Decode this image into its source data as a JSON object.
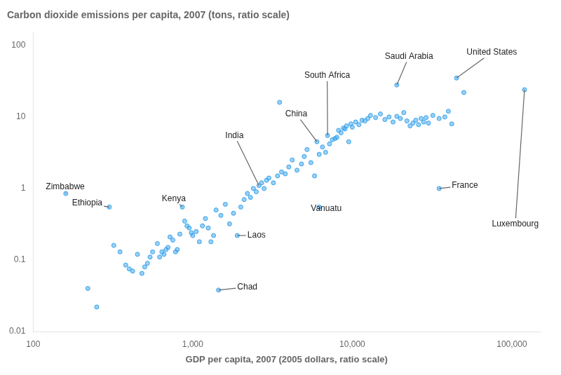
{
  "chart_data": {
    "type": "scatter",
    "title": "Carbon dioxide emissions per capita, 2007 (tons, ratio scale)",
    "x_label": "GDP per capita, 2007 (2005 dollars, ratio scale)",
    "log": true,
    "grid": false,
    "xlim": [
      100,
      150000
    ],
    "ylim": [
      0.01,
      150
    ],
    "xticks": [
      100,
      {
        "value": 1000,
        "label": "1,000"
      },
      {
        "value": 10000,
        "label": "10,000"
      },
      {
        "value": 100000,
        "label": "100,000"
      }
    ],
    "yticks": [
      0.01,
      0.1,
      1,
      10,
      100
    ],
    "x": [
      160,
      220,
      250,
      300,
      320,
      350,
      380,
      400,
      420,
      450,
      480,
      500,
      520,
      540,
      560,
      600,
      620,
      640,
      660,
      680,
      700,
      720,
      750,
      780,
      800,
      830,
      860,
      890,
      920,
      950,
      980,
      1000,
      1050,
      1100,
      1150,
      1200,
      1250,
      1300,
      1350,
      1400,
      1500,
      1600,
      1700,
      1800,
      1900,
      2000,
      2100,
      2200,
      2300,
      2400,
      2500,
      2600,
      2700,
      2800,
      2900,
      3000,
      3200,
      3400,
      3600,
      3800,
      4000,
      4200,
      4500,
      4800,
      5000,
      5200,
      5500,
      5800,
      6000,
      6200,
      6500,
      6800,
      7000,
      7200,
      7500,
      7800,
      8000,
      8200,
      8500,
      8800,
      9000,
      9200,
      9500,
      9800,
      10000,
      10500,
      11000,
      11500,
      12000,
      12500,
      13000,
      14000,
      15000,
      16000,
      17000,
      18000,
      19000,
      20000,
      21000,
      22000,
      23000,
      24000,
      25000,
      26000,
      27000,
      28000,
      29000,
      30000,
      32000,
      35000,
      38000,
      40000,
      42000,
      50000,
      120000,
      3500,
      19000,
      45000,
      35000,
      6200,
      1450
    ],
    "values": [
      0.85,
      0.04,
      0.022,
      0.55,
      0.16,
      0.13,
      0.085,
      0.075,
      0.07,
      0.12,
      0.065,
      0.08,
      0.09,
      0.11,
      0.13,
      0.17,
      0.11,
      0.13,
      0.12,
      0.14,
      0.15,
      0.21,
      0.19,
      0.13,
      0.14,
      0.23,
      0.55,
      0.35,
      0.3,
      0.28,
      0.24,
      0.22,
      0.25,
      0.18,
      0.3,
      0.38,
      0.28,
      0.18,
      0.22,
      0.5,
      0.42,
      0.6,
      0.32,
      0.45,
      0.22,
      0.55,
      0.7,
      0.85,
      0.75,
      1.0,
      0.9,
      1.1,
      1.2,
      1.0,
      1.3,
      1.4,
      1.2,
      1.5,
      1.7,
      1.6,
      2.0,
      2.5,
      1.8,
      2.2,
      2.8,
      3.5,
      2.3,
      1.5,
      4.5,
      3.0,
      3.8,
      3.2,
      5.5,
      4.2,
      4.8,
      5.0,
      5.2,
      6.5,
      6.0,
      7.0,
      6.8,
      7.5,
      4.5,
      8.0,
      7.2,
      8.5,
      7.8,
      9.0,
      8.8,
      9.5,
      10.5,
      9.8,
      11.0,
      9.2,
      10.0,
      8.5,
      10.2,
      9.5,
      11.5,
      8.8,
      7.5,
      8.2,
      9.0,
      7.8,
      9.5,
      8.5,
      9.8,
      8.2,
      10.5,
      9.5,
      10.0,
      12.0,
      8.0,
      22.0,
      24.0,
      16.0,
      28.0,
      35.0,
      1.0,
      0.55,
      0.038
    ],
    "annotations": [
      {
        "label": "Zimbabwe",
        "xy": [
          160,
          0.85
        ],
        "xytext": [
          120,
          1.05
        ]
      },
      {
        "label": "Ethiopia",
        "xy": [
          300,
          0.55
        ],
        "xytext": [
          175,
          0.62
        ]
      },
      {
        "label": "Kenya",
        "xy": [
          860,
          0.55
        ],
        "xytext": [
          640,
          0.72
        ]
      },
      {
        "label": "India",
        "xy": [
          2600,
          1.1
        ],
        "xytext": [
          1600,
          5.5
        ]
      },
      {
        "label": "China",
        "xy": [
          6000,
          4.5
        ],
        "xytext": [
          3800,
          11.0
        ]
      },
      {
        "label": "South Africa",
        "xy": [
          7000,
          5.5
        ],
        "xytext": [
          5000,
          38.0
        ]
      },
      {
        "label": "Saudi Arabia",
        "xy": [
          19000,
          28.0
        ],
        "xytext": [
          16000,
          70.0
        ]
      },
      {
        "label": "United States",
        "xy": [
          45000,
          35.0
        ],
        "xytext": [
          52000,
          80.0
        ]
      },
      {
        "label": "France",
        "xy": [
          35000,
          1.0
        ],
        "xytext": [
          42000,
          1.1
        ]
      },
      {
        "label": "Luxembourg",
        "xy": [
          120000,
          24.0
        ],
        "xytext": [
          75000,
          0.32
        ]
      },
      {
        "label": "Vanuatu",
        "xy": [
          6200,
          0.55
        ],
        "xytext": [
          5500,
          0.52
        ]
      },
      {
        "label": "Laos",
        "xy": [
          1900,
          0.22
        ],
        "xytext": [
          2200,
          0.22
        ]
      },
      {
        "label": "Chad",
        "xy": [
          1450,
          0.038
        ],
        "xytext": [
          1900,
          0.042
        ]
      }
    ]
  }
}
